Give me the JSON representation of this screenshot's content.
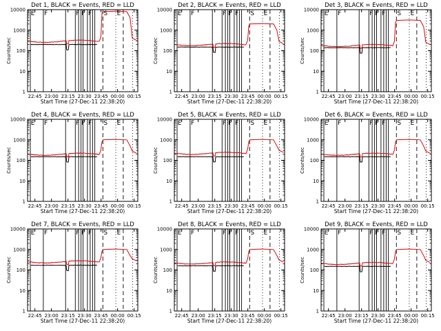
{
  "chart_data": [
    {
      "type": "line",
      "title": "Det 1, BLACK = Events, RED = LLD",
      "event_base": 200,
      "lld_base": 290,
      "lld_peak": 8000
    },
    {
      "type": "line",
      "title": "Det 2, BLACK = Events, RED = LLD",
      "event_base": 150,
      "lld_base": 200,
      "lld_peak": 2000
    },
    {
      "type": "line",
      "title": "Det 3, BLACK = Events, RED = LLD",
      "event_base": 140,
      "lld_base": 180,
      "lld_peak": 3000
    },
    {
      "type": "line",
      "title": "Det 4, BLACK = Events, RED = LLD",
      "event_base": 150,
      "lld_base": 200,
      "lld_peak": 1000
    },
    {
      "type": "line",
      "title": "Det 5, BLACK = Events, RED = LLD",
      "event_base": 150,
      "lld_base": 220,
      "lld_peak": 1000
    },
    {
      "type": "line",
      "title": "Det 6, BLACK = Events, RED = LLD",
      "event_base": 150,
      "lld_base": 200,
      "lld_peak": 1000
    },
    {
      "type": "line",
      "title": "Det 7, BLACK = Events, RED = LLD",
      "event_base": 170,
      "lld_base": 250,
      "lld_peak": 1000
    },
    {
      "type": "line",
      "title": "Det 8, BLACK = Events, RED = LLD",
      "event_base": 160,
      "lld_base": 220,
      "lld_peak": 1000
    },
    {
      "type": "line",
      "title": "Det 9, BLACK = Events, RED = LLD",
      "event_base": 150,
      "lld_base": 210,
      "lld_peak": 1000
    }
  ],
  "shared": {
    "xlabel": "Start Time (27-Dec-11 22:38:20)",
    "ylabel": "Counts/sec",
    "x_ticks": [
      "22:45",
      "23:00",
      "23:15",
      "23:30",
      "23:45",
      "00:00",
      "00:15"
    ],
    "x_tick_minutes": [
      6.67,
      21.67,
      36.67,
      51.67,
      66.67,
      81.67,
      96.67
    ],
    "x_range_minutes": [
      0,
      100
    ],
    "y_scale": "log",
    "y_range": [
      1,
      10000
    ],
    "y_ticks": [
      "1",
      "10",
      "100",
      "1000",
      "10000"
    ],
    "y_tick_values": [
      1,
      10,
      100,
      1000,
      10000
    ],
    "series_colors": {
      "events": "#000000",
      "lld": "#e00000"
    },
    "markers": {
      "solid_minutes": [
        2.5,
        14.3,
        34.5,
        43.3,
        46.3,
        48.5,
        50.3,
        54.3,
        56.8,
        59.0,
        61.0
      ],
      "dashed_minutes": [
        68.3,
        86.8
      ],
      "dotted_minutes": [
        80.0,
        95.3
      ],
      "flag_labels": [
        {
          "text": "E",
          "minute": 3.0
        },
        {
          "text": "F",
          "minute": 15.0
        },
        {
          "text": "F",
          "minute": 43.8
        },
        {
          "text": "F",
          "minute": 48.8
        },
        {
          "text": "F",
          "minute": 55.0
        },
        {
          "text": "S",
          "minute": 69.0
        },
        {
          "text": "E",
          "minute": 81.0
        }
      ]
    }
  }
}
